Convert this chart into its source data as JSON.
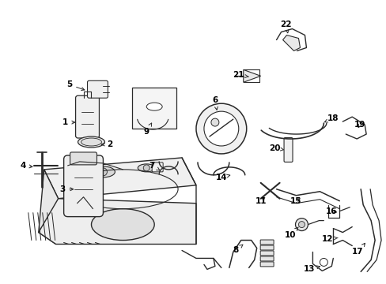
{
  "background_color": "#ffffff",
  "line_color": "#2a2a2a",
  "text_color": "#000000",
  "figsize": [
    4.89,
    3.6
  ],
  "dpi": 100
}
